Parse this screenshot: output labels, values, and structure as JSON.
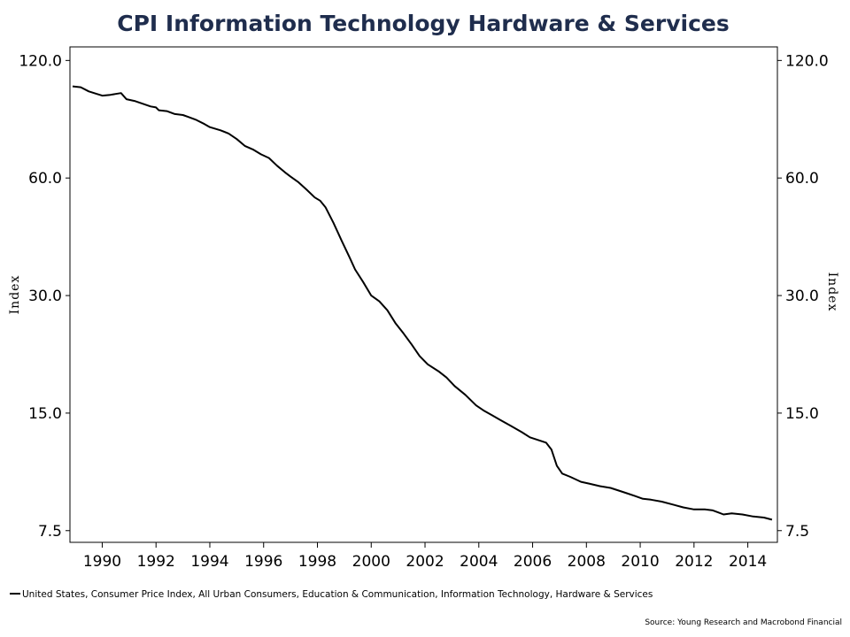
{
  "chart_data": {
    "type": "line",
    "title": "CPI Information Technology Hardware & Services",
    "ylabel_left": "Index",
    "ylabel_right": "Index",
    "y_scale": "log",
    "ylim": [
      7.0,
      130.0
    ],
    "xlim": [
      1988.8,
      2015.1
    ],
    "y_ticks": [
      {
        "value": 7.5,
        "label": "7.5"
      },
      {
        "value": 15.0,
        "label": "15.0"
      },
      {
        "value": 30.0,
        "label": "30.0"
      },
      {
        "value": 60.0,
        "label": "60.0"
      },
      {
        "value": 120.0,
        "label": "120.0"
      }
    ],
    "x_ticks": [
      {
        "value": 1990,
        "label": "1990"
      },
      {
        "value": 1992,
        "label": "1992"
      },
      {
        "value": 1994,
        "label": "1994"
      },
      {
        "value": 1996,
        "label": "1996"
      },
      {
        "value": 1998,
        "label": "1998"
      },
      {
        "value": 2000,
        "label": "2000"
      },
      {
        "value": 2002,
        "label": "2002"
      },
      {
        "value": 2004,
        "label": "2004"
      },
      {
        "value": 2006,
        "label": "2006"
      },
      {
        "value": 2008,
        "label": "2008"
      },
      {
        "value": 2010,
        "label": "2010"
      },
      {
        "value": 2012,
        "label": "2012"
      },
      {
        "value": 2014,
        "label": "2014"
      }
    ],
    "grid": false,
    "legend_position": "bottom-left",
    "series": [
      {
        "name": "United States, Consumer Price Index, All Urban Consumers, Education & Communication, Information Technology, Hardware & Services",
        "color": "#000000",
        "x": [
          1988.9,
          1989.2,
          1989.5,
          1989.8,
          1990.0,
          1990.3,
          1990.5,
          1990.7,
          1990.9,
          1991.2,
          1991.5,
          1991.8,
          1992.0,
          1992.1,
          1992.4,
          1992.7,
          1993.0,
          1993.2,
          1993.5,
          1993.8,
          1994.0,
          1994.4,
          1994.7,
          1995.0,
          1995.3,
          1995.6,
          1995.9,
          1996.2,
          1996.5,
          1996.8,
          1997.0,
          1997.3,
          1997.6,
          1997.9,
          1998.1,
          1998.3,
          1998.6,
          1998.9,
          1999.2,
          1999.4,
          1999.7,
          2000.0,
          2000.3,
          2000.6,
          2000.9,
          2001.2,
          2001.5,
          2001.8,
          2002.1,
          2002.5,
          2002.8,
          2003.1,
          2003.5,
          2003.9,
          2004.2,
          2004.5,
          2004.8,
          2005.2,
          2005.6,
          2005.9,
          2006.2,
          2006.5,
          2006.7,
          2006.9,
          2007.1,
          2007.4,
          2007.8,
          2008.1,
          2008.5,
          2008.9,
          2009.2,
          2009.5,
          2009.8,
          2010.1,
          2010.4,
          2010.8,
          2011.2,
          2011.6,
          2012.0,
          2012.4,
          2012.7,
          2012.9,
          2013.1,
          2013.4,
          2013.8,
          2014.2,
          2014.6,
          2014.9
        ],
        "y": [
          103.0,
          102.5,
          100.0,
          98.5,
          97.5,
          98.0,
          98.5,
          99.0,
          95.5,
          94.5,
          93.0,
          91.5,
          91.0,
          89.5,
          89.0,
          87.5,
          87.0,
          86.0,
          84.5,
          82.5,
          81.0,
          79.5,
          78.0,
          75.5,
          72.5,
          71.0,
          69.0,
          67.5,
          64.5,
          62.0,
          60.5,
          58.5,
          56.0,
          53.5,
          52.5,
          50.5,
          46.0,
          41.5,
          37.5,
          35.0,
          32.5,
          30.0,
          29.0,
          27.5,
          25.5,
          24.0,
          22.5,
          21.0,
          20.0,
          19.2,
          18.5,
          17.6,
          16.7,
          15.7,
          15.2,
          14.8,
          14.4,
          13.9,
          13.4,
          13.0,
          12.8,
          12.6,
          12.1,
          11.0,
          10.5,
          10.3,
          10.0,
          9.9,
          9.75,
          9.65,
          9.5,
          9.35,
          9.2,
          9.05,
          9.0,
          8.9,
          8.75,
          8.6,
          8.5,
          8.5,
          8.45,
          8.35,
          8.25,
          8.3,
          8.25,
          8.15,
          8.1,
          8.0
        ]
      }
    ],
    "legend_text": "United States, Consumer Price Index, All Urban Consumers, Education & Communication, Information Technology, Hardware & Services",
    "source": "Source: Young Research and Macrobond Financial"
  }
}
